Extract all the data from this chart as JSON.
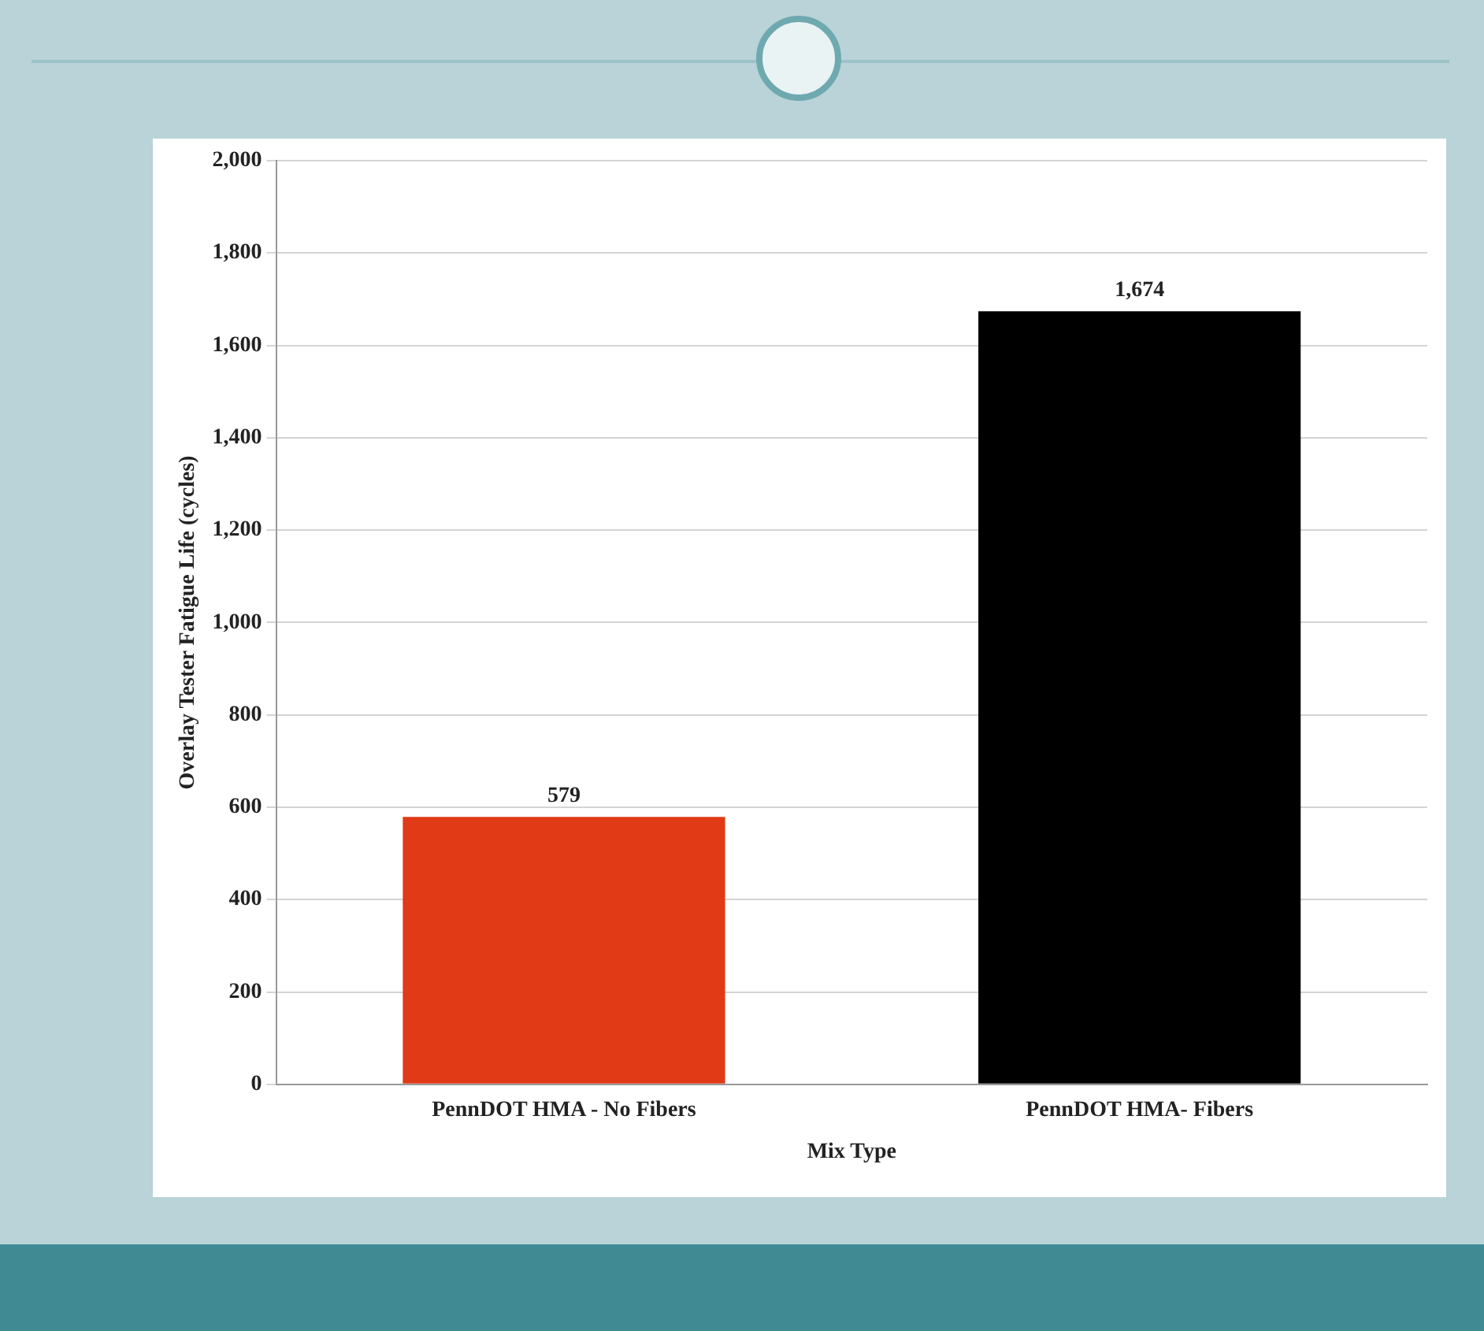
{
  "chart_data": {
    "type": "bar",
    "xlabel": "Mix Type",
    "ylabel": "Overlay Tester Fatigue Life (cycles)",
    "categories": [
      "PennDOT HMA - No Fibers",
      "PennDOT HMA- Fibers"
    ],
    "values": [
      579,
      1674
    ],
    "colors": [
      "#e03a16",
      "#000000"
    ],
    "ylim": [
      0,
      2000
    ],
    "yticks": [
      {
        "value": 0,
        "label": "0"
      },
      {
        "value": 200,
        "label": "200"
      },
      {
        "value": 400,
        "label": "400"
      },
      {
        "value": 600,
        "label": "600"
      },
      {
        "value": 800,
        "label": "800"
      },
      {
        "value": 1000,
        "label": "1,000"
      },
      {
        "value": 1200,
        "label": "1,200"
      },
      {
        "value": 1400,
        "label": "1,400"
      },
      {
        "value": 1600,
        "label": "1,600"
      },
      {
        "value": 1800,
        "label": "1,800"
      },
      {
        "value": 2000,
        "label": "2,000"
      }
    ],
    "value_labels": [
      "579",
      "1,674"
    ],
    "grid": "y",
    "legend": false
  }
}
